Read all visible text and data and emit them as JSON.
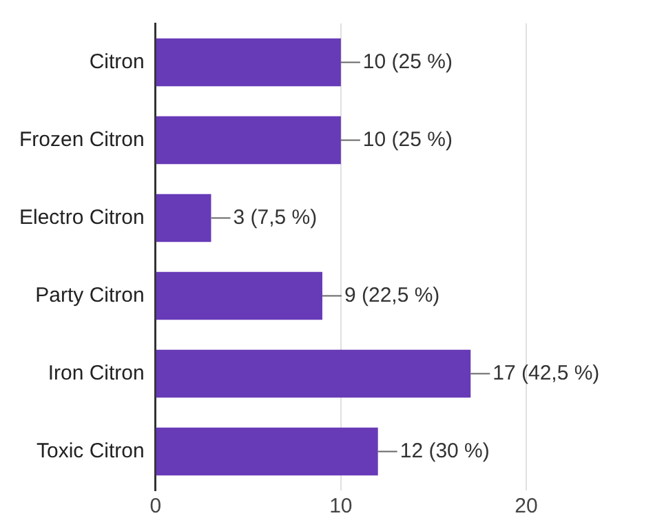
{
  "chart_data": {
    "type": "bar",
    "orientation": "horizontal",
    "categories": [
      "Citron",
      "Frozen Citron",
      "Electro Citron",
      "Party Citron",
      "Iron Citron",
      "Toxic Citron"
    ],
    "values": [
      10,
      10,
      3,
      9,
      17,
      12
    ],
    "color": "#673ab7",
    "value_labels": [
      "10 (25 %)",
      "10 (25 %)",
      "3 (7,5 %)",
      "9 (22,5 %)",
      "17 (42,5 %)",
      "12 (30 %)"
    ],
    "xlim": [
      0,
      20
    ],
    "xticks": [
      0,
      10,
      20
    ],
    "grid": "x",
    "legend": false
  }
}
